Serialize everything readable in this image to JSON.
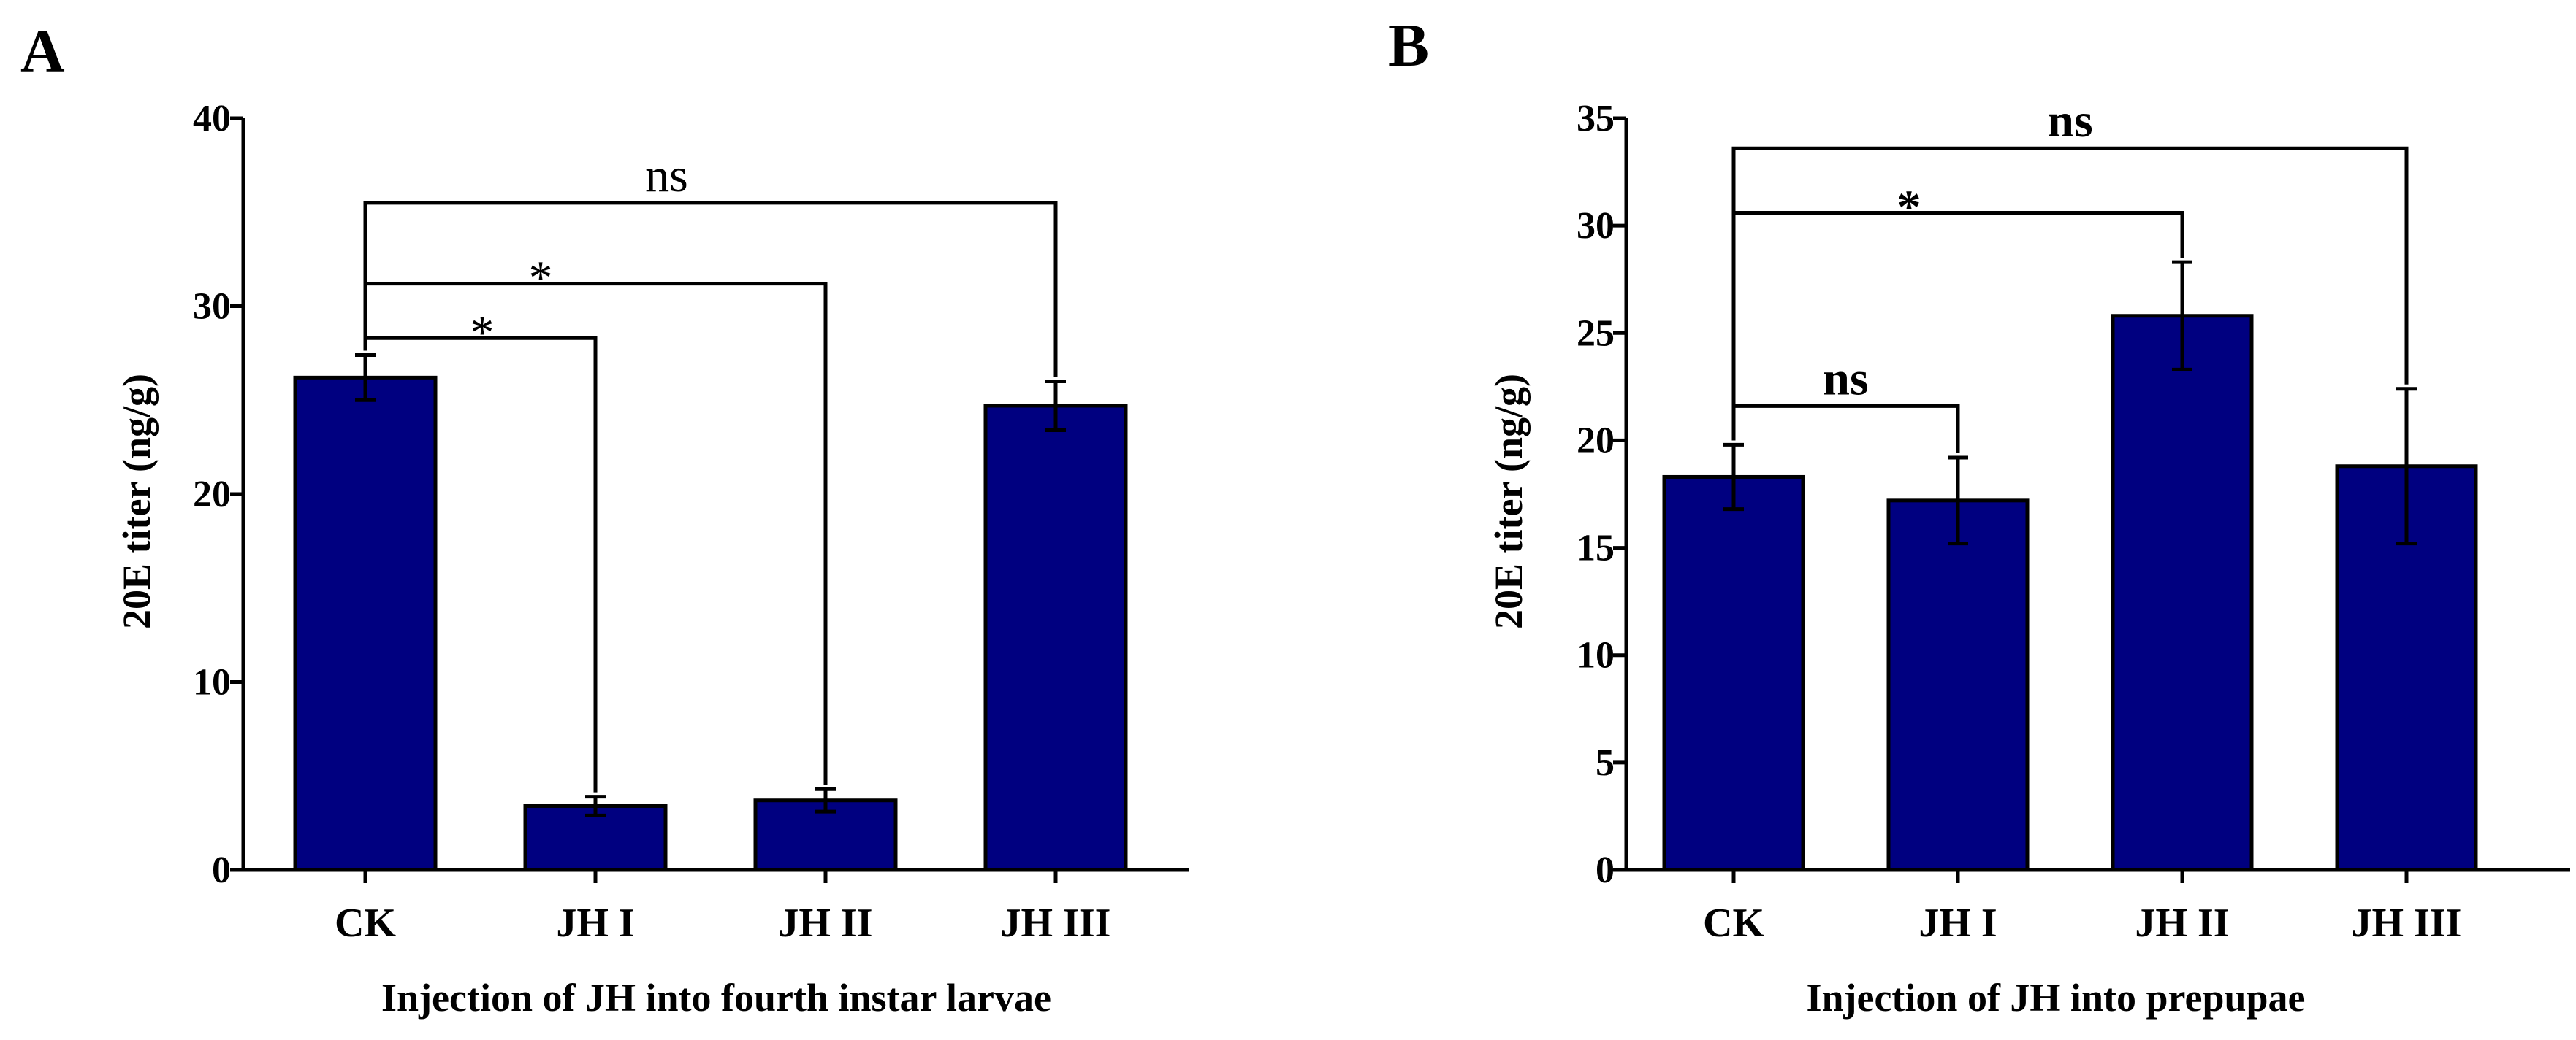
{
  "bar_color": "#000080",
  "chart_data": [
    {
      "panel": "A",
      "type": "bar",
      "categories": [
        "CK",
        "JH I",
        "JH II",
        "JH III"
      ],
      "values": [
        26.2,
        3.4,
        3.7,
        24.7
      ],
      "errors": [
        1.2,
        0.5,
        0.6,
        1.3
      ],
      "xlabel": "Injection of JH into fourth instar larvae",
      "ylabel": "20E titer (ng/g)",
      "ylim": [
        0,
        40
      ],
      "yticks": [
        0,
        10,
        20,
        30,
        40
      ],
      "sig_bold": false,
      "comparisons": [
        {
          "from": 0,
          "to": 1,
          "label": "*",
          "level": 28.3
        },
        {
          "from": 0,
          "to": 2,
          "label": "*",
          "level": 31.2
        },
        {
          "from": 0,
          "to": 3,
          "label": "ns",
          "level": 35.5
        }
      ]
    },
    {
      "panel": "B",
      "type": "bar",
      "categories": [
        "CK",
        "JH I",
        "JH II",
        "JH III"
      ],
      "values": [
        18.3,
        17.2,
        25.8,
        18.8
      ],
      "errors": [
        1.5,
        2.0,
        2.5,
        3.6
      ],
      "xlabel": "Injection of JH into prepupae",
      "ylabel": "20E titer (ng/g)",
      "ylim": [
        0,
        35
      ],
      "yticks": [
        0,
        5,
        10,
        15,
        20,
        25,
        30,
        35
      ],
      "sig_bold": true,
      "comparisons": [
        {
          "from": 0,
          "to": 1,
          "label": "ns",
          "level": 21.6
        },
        {
          "from": 0,
          "to": 2,
          "label": "*",
          "level": 30.6
        },
        {
          "from": 0,
          "to": 3,
          "label": "ns",
          "level": 33.6
        }
      ]
    }
  ]
}
